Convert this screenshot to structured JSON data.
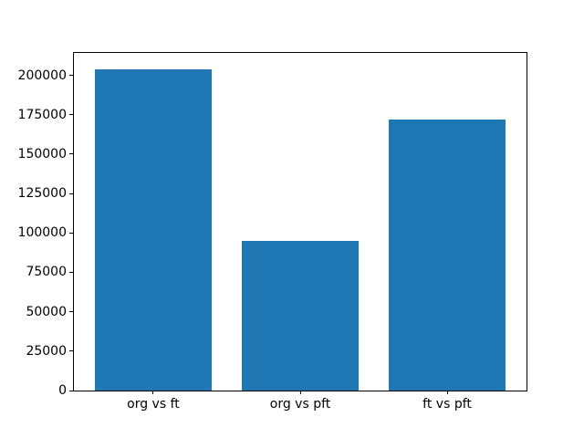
{
  "chart_data": {
    "type": "bar",
    "title": "",
    "xlabel": "",
    "ylabel": "",
    "categories": [
      "org vs ft",
      "org vs pft",
      "ft vs pft"
    ],
    "values": [
      204000,
      95000,
      172000
    ],
    "bar_color": "#1f77b4",
    "background_color": "#ffffff",
    "axes_edge_color": "#000000",
    "grid": false,
    "legend_position": "none",
    "xlim": [
      -0.54,
      2.54
    ],
    "ylim": [
      0,
      214200
    ],
    "bar_width_fraction": 0.8,
    "yticks": [
      0,
      25000,
      50000,
      75000,
      100000,
      125000,
      150000,
      175000,
      200000
    ],
    "ytick_labels": [
      "0",
      "25000",
      "50000",
      "75000",
      "100000",
      "125000",
      "150000",
      "175000",
      "200000"
    ]
  }
}
